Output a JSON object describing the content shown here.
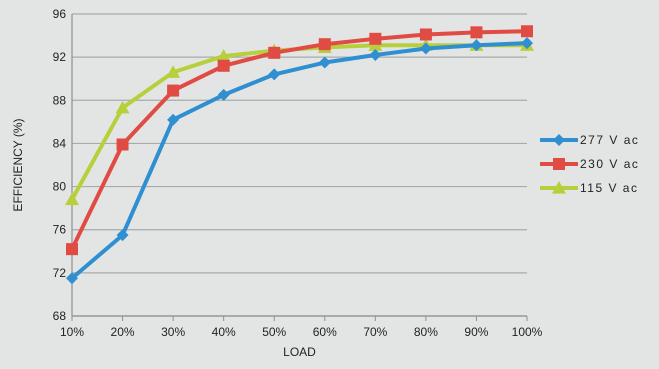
{
  "chart_data": {
    "type": "line",
    "xlabel": "LOAD",
    "ylabel": "EFFICIENCY (%)",
    "categories": [
      "10%",
      "20%",
      "30%",
      "40%",
      "50%",
      "60%",
      "70%",
      "80%",
      "90%",
      "100%"
    ],
    "ylim": [
      68,
      96
    ],
    "yticks": [
      68,
      72,
      76,
      80,
      84,
      88,
      92,
      96
    ],
    "grid": "horizontal",
    "legend_position": "right",
    "series": [
      {
        "name": "277 V ac",
        "color": "#2f8fd0",
        "marker": "diamond",
        "values": [
          71.5,
          75.5,
          86.2,
          88.5,
          90.4,
          91.5,
          92.2,
          92.8,
          93.1,
          93.3
        ]
      },
      {
        "name": "230 V ac",
        "color": "#e04b43",
        "marker": "square",
        "values": [
          74.2,
          83.9,
          88.9,
          91.2,
          92.4,
          93.2,
          93.7,
          94.1,
          94.3,
          94.4
        ]
      },
      {
        "name": "115 V ac",
        "color": "#b7cf3a",
        "marker": "triangle",
        "values": [
          78.8,
          87.3,
          90.6,
          92.1,
          92.6,
          92.9,
          93.1,
          93.1,
          93.1,
          93.1
        ]
      }
    ]
  }
}
